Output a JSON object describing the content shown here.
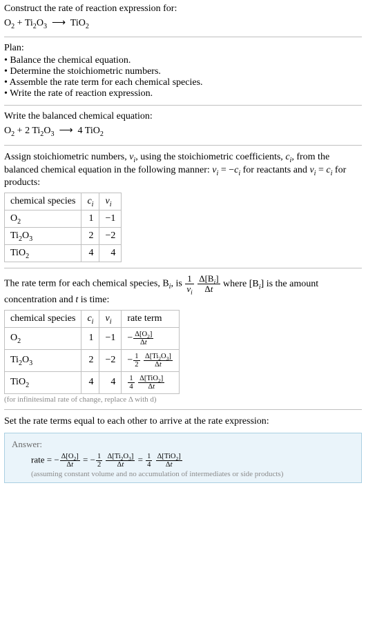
{
  "colors": {
    "text": "#000000",
    "rule": "#bfbfbf",
    "note": "#888888",
    "answer_bg": "#eaf4fa",
    "answer_border": "#a9cfe2",
    "answer_label": "#6a6a6a",
    "answer_assume": "#8a8a8a"
  },
  "section_construct": {
    "title": "Construct the rate of reaction expression for:",
    "equation_html": "O<sub>2</sub> + Ti<sub>2</sub>O<sub>3</sub> &nbsp;⟶&nbsp; TiO<sub>2</sub>"
  },
  "section_plan": {
    "title": "Plan:",
    "items": [
      "Balance the chemical equation.",
      "Determine the stoichiometric numbers.",
      "Assemble the rate term for each chemical species.",
      "Write the rate of reaction expression."
    ]
  },
  "section_balanced": {
    "title": "Write the balanced chemical equation:",
    "equation_html": "O<sub>2</sub> + 2 Ti<sub>2</sub>O<sub>3</sub> &nbsp;⟶&nbsp; 4 TiO<sub>2</sub>"
  },
  "section_stoich": {
    "intro_html": "Assign stoichiometric numbers, <span class=\"ital\">ν<sub>i</sub></span>, using the stoichiometric coefficients, <span class=\"ital\">c<sub>i</sub></span>, from the balanced chemical equation in the following manner: <span class=\"ital\">ν<sub>i</sub></span> = −<span class=\"ital\">c<sub>i</sub></span> for reactants and <span class=\"ital\">ν<sub>i</sub></span> = <span class=\"ital\">c<sub>i</sub></span> for products:",
    "table": {
      "headers": [
        "chemical species",
        "c_i",
        "ν_i"
      ],
      "rows": [
        {
          "species_html": "O<sub>2</sub>",
          "c": "1",
          "nu": "−1"
        },
        {
          "species_html": "Ti<sub>2</sub>O<sub>3</sub>",
          "c": "2",
          "nu": "−2"
        },
        {
          "species_html": "TiO<sub>2</sub>",
          "c": "4",
          "nu": "4"
        }
      ]
    }
  },
  "section_rateterm": {
    "intro_pre": "The rate term for each chemical species, B",
    "intro_post": ", is ",
    "intro_tail_html": " where [B<sub><span class=\"ital\">i</span></sub>] is the amount concentration and <span class=\"ital\">t</span> is time:",
    "table": {
      "headers": [
        "chemical species",
        "c_i",
        "ν_i",
        "rate term"
      ],
      "rows": [
        {
          "species_html": "O<sub>2</sub>",
          "c": "1",
          "nu": "−1",
          "rate_html": "−<span class=\"frac\"><span class=\"num\">Δ[O<sub>2</sub>]</span><span class=\"den\">Δ<span class=\"ital\">t</span></span></span>"
        },
        {
          "species_html": "Ti<sub>2</sub>O<sub>3</sub>",
          "c": "2",
          "nu": "−2",
          "rate_html": "−<span class=\"frac\"><span class=\"num\">1</span><span class=\"den\">2</span></span> <span class=\"frac\"><span class=\"num\">Δ[Ti<sub>2</sub>O<sub>3</sub>]</span><span class=\"den\">Δ<span class=\"ital\">t</span></span></span>"
        },
        {
          "species_html": "TiO<sub>2</sub>",
          "c": "4",
          "nu": "4",
          "rate_html": "<span class=\"frac\"><span class=\"num\">1</span><span class=\"den\">4</span></span> <span class=\"frac\"><span class=\"num\">Δ[TiO<sub>2</sub>]</span><span class=\"den\">Δ<span class=\"ital\">t</span></span></span>"
        }
      ]
    },
    "footnote": "(for infinitesimal rate of change, replace Δ with d)"
  },
  "section_set": {
    "title": "Set the rate terms equal to each other to arrive at the rate expression:"
  },
  "answer": {
    "label": "Answer:",
    "rate_html": "rate = −<span class=\"frac\"><span class=\"num\">Δ[O<sub>2</sub>]</span><span class=\"den\">Δ<span class=\"ital\">t</span></span></span> = −<span class=\"frac\"><span class=\"num\">1</span><span class=\"den\">2</span></span> <span class=\"frac\"><span class=\"num\">Δ[Ti<sub>2</sub>O<sub>3</sub>]</span><span class=\"den\">Δ<span class=\"ital\">t</span></span></span> = <span class=\"frac\"><span class=\"num\">1</span><span class=\"den\">4</span></span> <span class=\"frac\"><span class=\"num\">Δ[TiO<sub>2</sub>]</span><span class=\"den\">Δ<span class=\"ital\">t</span></span></span>",
    "assume": "(assuming constant volume and no accumulation of intermediates or side products)"
  }
}
